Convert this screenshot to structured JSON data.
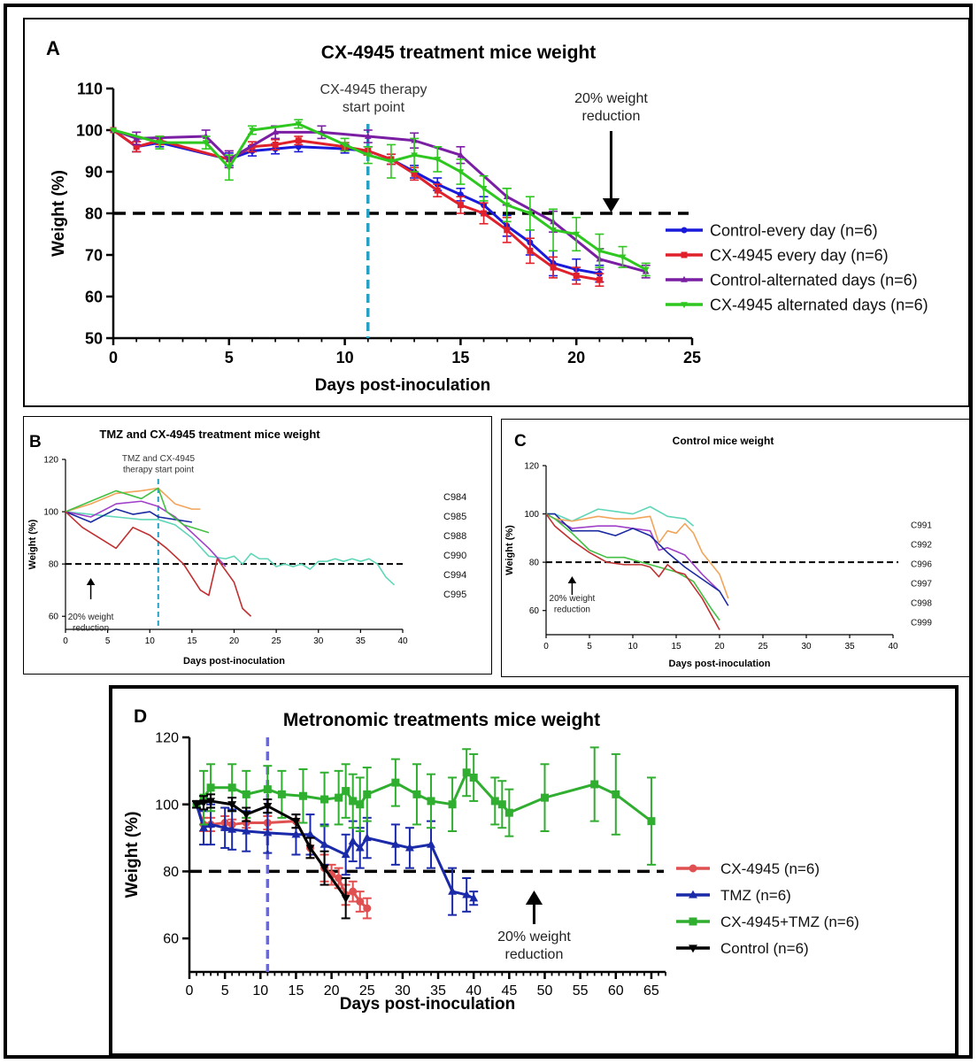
{
  "chart_data": [
    {
      "panel_letter": "A",
      "type": "line",
      "title": "CX-4945 treatment mice weight",
      "xlabel": "Days post-inoculation",
      "ylabel": "Weight (%)",
      "xlim": [
        0,
        25
      ],
      "ylim": [
        50,
        110
      ],
      "xticks": [
        "0",
        "5",
        "10",
        "15",
        "20",
        "25"
      ],
      "yticks": [
        "50",
        "60",
        "70",
        "80",
        "90",
        "100",
        "110"
      ],
      "threshold": 80,
      "therapy_start_day": 11,
      "annotations": {
        "therapy": [
          "CX-4945 therapy",
          "start point"
        ],
        "reduction": [
          "20% weight",
          "reduction"
        ]
      },
      "reduction_arrow_x": 21.5,
      "legend_position": "right",
      "series": [
        {
          "name": "Control-every day (n=6)",
          "color": "#1a1adb",
          "marker": "circle",
          "x": [
            0,
            1,
            2,
            5,
            6,
            7,
            8,
            10,
            11,
            12,
            13,
            14,
            15,
            16,
            17,
            18,
            19,
            20,
            21
          ],
          "y": [
            100,
            96,
            97,
            93,
            95,
            95.5,
            96,
            95.5,
            95,
            93,
            90,
            87,
            84.5,
            82,
            77,
            73,
            68,
            66.5,
            65.5
          ],
          "err": [
            0,
            1.2,
            1,
            1.5,
            1.2,
            1.2,
            1.2,
            1,
            1,
            1.2,
            1.5,
            1.5,
            1.5,
            2,
            2.5,
            3,
            3,
            2.5,
            2
          ]
        },
        {
          "name": "CX-4945 every day (n=6)",
          "color": "#e0202a",
          "marker": "square",
          "x": [
            0,
            1,
            2,
            5,
            6,
            7,
            8,
            10,
            11,
            12,
            13,
            14,
            15,
            16,
            17,
            18,
            19,
            20,
            21
          ],
          "y": [
            100,
            96,
            97.5,
            93,
            96,
            96.5,
            97.5,
            96,
            95,
            93,
            89.5,
            85.5,
            82,
            80,
            76,
            71,
            67,
            65,
            64
          ],
          "err": [
            0,
            1.2,
            1,
            2,
            1.2,
            1.2,
            1,
            1,
            1,
            1.2,
            1.5,
            1.5,
            2,
            2.5,
            3,
            3,
            2.5,
            2,
            1.5
          ]
        },
        {
          "name": "Control-alternated days (n=6)",
          "color": "#7a1fa3",
          "marker": "triangle",
          "x": [
            0,
            1,
            4,
            5,
            7,
            9,
            11,
            13,
            15,
            17,
            19,
            21,
            23
          ],
          "y": [
            100,
            98,
            98.5,
            93,
            99.5,
            99.5,
            98.5,
            97.5,
            94,
            84,
            78,
            69,
            66
          ],
          "err": [
            0,
            1.5,
            1.5,
            2,
            1.5,
            1.5,
            1.5,
            1.8,
            2,
            2,
            2.5,
            2.5,
            1.5
          ]
        },
        {
          "name": "CX-4945 alternated days (n=6)",
          "color": "#2ec71f",
          "marker": "triangle-down",
          "x": [
            0,
            2,
            4,
            5,
            6,
            8,
            10,
            11,
            12,
            13,
            14,
            15,
            16,
            17,
            18,
            19,
            20,
            21,
            22,
            23
          ],
          "y": [
            100,
            97,
            97,
            91,
            100,
            101.5,
            96.5,
            94,
            92.5,
            94,
            93,
            90,
            86,
            82,
            80,
            76,
            75,
            71,
            69.5,
            66.5
          ],
          "err": [
            0,
            1.5,
            1.5,
            3,
            1,
            1,
            1.5,
            2,
            4,
            4,
            3,
            3,
            3,
            4,
            4,
            5,
            4,
            4,
            2.5,
            1.5
          ]
        }
      ]
    },
    {
      "panel_letter": "B",
      "type": "line",
      "title": "TMZ and CX-4945 treatment mice weight",
      "xlabel": "Days post-inoculation",
      "ylabel": "Weight (%)",
      "xlim": [
        0,
        40
      ],
      "ylim": [
        55,
        120
      ],
      "xticks": [
        "0",
        "5",
        "10",
        "15",
        "20",
        "25",
        "30",
        "35",
        "40"
      ],
      "yticks": [
        "60",
        "80",
        "100",
        "120"
      ],
      "threshold": 80,
      "therapy_start_day": 11,
      "annotations": {
        "therapy": [
          "TMZ and CX-4945",
          "therapy start point"
        ],
        "reduction": [
          "20% weight",
          "reduction"
        ]
      },
      "reduction_arrow_x": 3,
      "legend_position": "right",
      "series": [
        {
          "name": "C984",
          "color": "#5fd6b8",
          "x": [
            0,
            3,
            6,
            9,
            11,
            13,
            15,
            17,
            19,
            20,
            21,
            22,
            23,
            24,
            25,
            26,
            27,
            28,
            29,
            30,
            31,
            32,
            33,
            34,
            35,
            36,
            37,
            38,
            39
          ],
          "y": [
            100,
            99,
            98,
            97,
            97,
            95,
            90,
            83,
            82,
            83,
            80,
            84,
            82,
            82,
            79,
            80,
            79,
            80,
            78,
            81,
            81,
            82,
            81,
            82,
            81,
            82,
            80,
            75,
            72
          ]
        },
        {
          "name": "C985",
          "color": "#a040c8",
          "x": [
            0,
            3,
            6,
            9,
            11,
            13,
            15,
            17,
            19
          ],
          "y": [
            100,
            98,
            103,
            104,
            102,
            98,
            92,
            86,
            79
          ]
        },
        {
          "name": "C988",
          "color": "#1a2aa0",
          "x": [
            0,
            3,
            6,
            8,
            10,
            11,
            13,
            15
          ],
          "y": [
            100,
            96,
            101,
            99,
            100,
            98,
            97,
            96
          ]
        },
        {
          "name": "C990",
          "color": "#f2a45a",
          "x": [
            0,
            3,
            6,
            9,
            11,
            13,
            15,
            16
          ],
          "y": [
            100,
            103,
            107,
            108,
            109,
            103,
            101,
            101
          ]
        },
        {
          "name": "C994",
          "color": "#44c044",
          "x": [
            0,
            3,
            6,
            9,
            11,
            12,
            14,
            16,
            17
          ],
          "y": [
            100,
            104,
            108,
            105,
            109,
            100,
            95,
            93,
            92
          ]
        },
        {
          "name": "C995",
          "color": "#c03030",
          "x": [
            0,
            2,
            4,
            6,
            8,
            10,
            12,
            14,
            16,
            17,
            18,
            20,
            21,
            22
          ],
          "y": [
            100,
            94,
            90,
            86,
            94,
            91,
            86,
            80,
            70,
            68,
            82,
            73,
            63,
            60
          ]
        }
      ]
    },
    {
      "panel_letter": "C",
      "type": "line",
      "title": "Control mice weight",
      "xlabel": "Days post-inoculation",
      "ylabel": "Weight (%)",
      "xlim": [
        0,
        40
      ],
      "ylim": [
        50,
        120
      ],
      "xticks": [
        "0",
        "5",
        "10",
        "15",
        "20",
        "25",
        "30",
        "35",
        "40"
      ],
      "yticks": [
        "60",
        "80",
        "100",
        "120"
      ],
      "threshold": 80,
      "annotations": {
        "reduction": [
          "20% weight",
          "reduction"
        ]
      },
      "reduction_arrow_x": 3,
      "legend_position": "right",
      "series": [
        {
          "name": "C991",
          "color": "#5fd6b8",
          "x": [
            0,
            1,
            3,
            6,
            8,
            10,
            12,
            14,
            16,
            17
          ],
          "y": [
            100,
            100,
            97,
            102,
            101,
            100,
            103,
            99,
            98,
            95
          ]
        },
        {
          "name": "C992",
          "color": "#a040c8",
          "x": [
            0,
            1,
            3,
            6,
            8,
            10,
            12,
            13,
            14,
            16,
            18,
            20
          ],
          "y": [
            100,
            98,
            94,
            95,
            95,
            94,
            93,
            85,
            86,
            83,
            75,
            68
          ]
        },
        {
          "name": "C996",
          "color": "#1a2aa0",
          "x": [
            0,
            1,
            3,
            6,
            8,
            10,
            12,
            14,
            16,
            18,
            20,
            21
          ],
          "y": [
            100,
            100,
            93,
            93,
            91,
            94,
            91,
            84,
            78,
            73,
            68,
            62
          ]
        },
        {
          "name": "C997",
          "color": "#f2a45a",
          "x": [
            0,
            1,
            3,
            6,
            8,
            10,
            12,
            13,
            14,
            15,
            16,
            17,
            18,
            20,
            21
          ],
          "y": [
            100,
            98,
            97,
            99,
            98,
            98,
            99,
            88,
            93,
            92,
            96,
            92,
            84,
            75,
            65
          ]
        },
        {
          "name": "C998",
          "color": "#44c044",
          "x": [
            0,
            1,
            3,
            5,
            7,
            9,
            11,
            13,
            15,
            17,
            19,
            20
          ],
          "y": [
            100,
            98,
            92,
            85,
            82,
            82,
            80,
            78,
            76,
            72,
            61,
            56
          ]
        },
        {
          "name": "C999",
          "color": "#c03030",
          "x": [
            0,
            1,
            3,
            5,
            7,
            9,
            11,
            12,
            13,
            14,
            15,
            16,
            18,
            20
          ],
          "y": [
            100,
            95,
            89,
            84,
            80,
            79,
            79,
            78,
            74,
            79,
            76,
            75,
            65,
            52
          ]
        }
      ]
    },
    {
      "panel_letter": "D",
      "type": "line",
      "title": "Metronomic treatments mice weight",
      "xlabel": "Days post-inoculation",
      "ylabel": "Weight (%)",
      "xlim": [
        0,
        67
      ],
      "ylim": [
        50,
        120
      ],
      "xticks": [
        "0",
        "5",
        "10",
        "15",
        "20",
        "25",
        "30",
        "35",
        "40",
        "45",
        "50",
        "55",
        "60",
        "65"
      ],
      "yticks": [
        "60",
        "80",
        "100",
        "120"
      ],
      "threshold": 80,
      "therapy_start_day": 11,
      "annotations": {
        "reduction": [
          "20% weight",
          "reduction"
        ]
      },
      "reduction_arrow_x": 48.5,
      "legend_position": "right",
      "series": [
        {
          "name": "CX-4945 (n=6)",
          "color": "#e05050",
          "marker": "circle",
          "x": [
            1,
            2,
            3,
            5,
            6,
            8,
            11,
            15,
            17,
            19,
            20,
            21,
            22,
            23,
            24,
            25
          ],
          "y": [
            100,
            94,
            94,
            94.5,
            94,
            94.5,
            94.5,
            95,
            87,
            81,
            79,
            78,
            73,
            74,
            71,
            69
          ],
          "err": [
            1,
            2,
            2,
            2,
            1.5,
            1.5,
            2,
            2,
            3,
            4,
            3,
            3,
            3,
            3,
            3,
            3
          ]
        },
        {
          "name": "TMZ (n=6)",
          "color": "#1a2aa8",
          "marker": "triangle",
          "x": [
            1,
            2,
            3,
            5,
            6,
            8,
            11,
            15,
            17,
            19,
            22,
            23,
            24,
            25,
            29,
            31,
            34,
            37,
            39,
            40
          ],
          "y": [
            100,
            93,
            94,
            93,
            92.5,
            92,
            91.5,
            91,
            91,
            88,
            85,
            89,
            87,
            90,
            88,
            87,
            88,
            74,
            73,
            72
          ],
          "err": [
            1,
            5,
            6,
            6,
            6,
            6,
            6,
            6,
            6,
            6,
            6,
            6,
            6,
            6,
            6,
            6,
            7,
            7,
            5,
            2
          ]
        },
        {
          "name": "CX-4945+TMZ (n=6)",
          "color": "#2fae2f",
          "marker": "square",
          "x": [
            1,
            2,
            3,
            6,
            8,
            11,
            13,
            16,
            19,
            21,
            22,
            23,
            24,
            25,
            29,
            32,
            34,
            37,
            39,
            40,
            43,
            44,
            45,
            50,
            57,
            60,
            65
          ],
          "y": [
            100,
            102,
            105,
            105,
            103,
            104.5,
            103,
            102.5,
            101.5,
            102,
            104,
            101,
            100,
            103,
            106.5,
            103,
            101,
            100,
            109.5,
            108,
            101,
            100,
            97.5,
            102,
            106,
            103,
            95
          ],
          "err": [
            1,
            8,
            7,
            7,
            7,
            7,
            7,
            8,
            8,
            8,
            8,
            8,
            8,
            8,
            7,
            9,
            8,
            8,
            7,
            7,
            7,
            7,
            7,
            10,
            11,
            12,
            13
          ]
        },
        {
          "name": "Control (n=6)",
          "color": "#000000",
          "marker": "triangle-down",
          "x": [
            1,
            2,
            3,
            6,
            8,
            11,
            15,
            17,
            19,
            22
          ],
          "y": [
            100,
            100.5,
            101,
            100,
            97,
            99.5,
            95,
            87,
            81,
            72
          ],
          "err": [
            1,
            2,
            2,
            2,
            2,
            2,
            2,
            3,
            5,
            6
          ]
        }
      ]
    }
  ]
}
